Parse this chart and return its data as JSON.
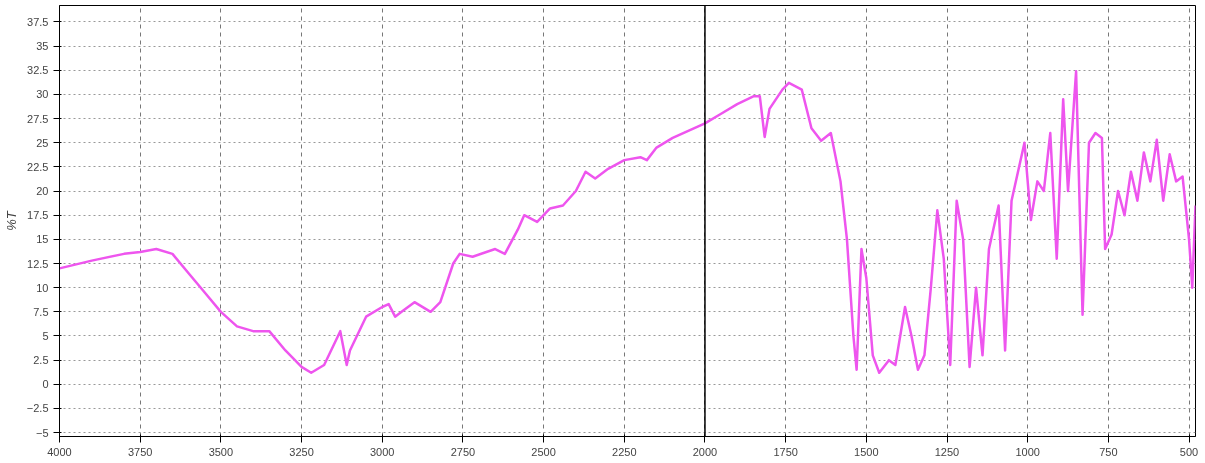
{
  "chart_data": {
    "type": "line",
    "ylabel": "%T",
    "x": [
      4000,
      3900,
      3800,
      3750,
      3700,
      3650,
      3600,
      3550,
      3500,
      3450,
      3400,
      3350,
      3300,
      3250,
      3220,
      3180,
      3130,
      3110,
      3100,
      3050,
      3000,
      2980,
      2960,
      2940,
      2900,
      2850,
      2820,
      2780,
      2760,
      2720,
      2650,
      2620,
      2580,
      2560,
      2520,
      2480,
      2440,
      2400,
      2370,
      2340,
      2300,
      2250,
      2200,
      2180,
      2150,
      2100,
      2000,
      1950,
      1900,
      1850,
      1830,
      1815,
      1800,
      1760,
      1740,
      1700,
      1670,
      1640,
      1610,
      1580,
      1560,
      1540,
      1530,
      1515,
      1500,
      1480,
      1460,
      1430,
      1410,
      1380,
      1360,
      1340,
      1320,
      1300,
      1280,
      1260,
      1240,
      1220,
      1200,
      1180,
      1160,
      1140,
      1120,
      1090,
      1070,
      1050,
      1010,
      990,
      970,
      950,
      930,
      910,
      890,
      875,
      850,
      830,
      810,
      790,
      770,
      760,
      740,
      720,
      700,
      680,
      660,
      640,
      620,
      600,
      580,
      560,
      540,
      520,
      500,
      490,
      480
    ],
    "series": [
      {
        "color": "#ee55ee",
        "values": [
          12,
          12.8,
          13.5,
          13.7,
          14,
          13.5,
          11.5,
          9.5,
          7.5,
          6,
          5.5,
          5.5,
          3.5,
          1.8,
          1.2,
          2,
          5.5,
          2,
          3.5,
          7,
          8,
          8.3,
          7,
          7.5,
          8.5,
          7.5,
          8.5,
          12.5,
          13.5,
          13.2,
          14,
          13.5,
          16,
          17.5,
          16.8,
          18.2,
          18.5,
          20,
          22,
          21.3,
          22.3,
          23.2,
          23.5,
          23.2,
          24.5,
          25.5,
          27,
          28,
          29,
          29.8,
          29.8,
          25.6,
          28.5,
          30.5,
          31.2,
          30.5,
          26.5,
          25.2,
          26,
          21,
          15,
          5,
          1.5,
          14,
          11,
          3,
          1.2,
          2.5,
          2,
          8,
          5,
          1.5,
          3,
          10,
          18,
          13,
          2,
          19,
          15,
          1.8,
          10,
          3,
          14,
          18.5,
          3.5,
          19,
          25,
          17,
          21,
          20,
          26,
          13,
          29.5,
          20,
          32.4,
          7.2,
          25,
          26,
          25.5,
          14,
          15.5,
          20,
          17.5,
          22,
          19,
          24,
          21,
          25.3,
          19,
          23.8,
          21,
          21.5,
          15,
          10,
          18.5
        ]
      }
    ],
    "xlim": [
      4000,
      480
    ],
    "ylim": [
      -5.4,
      39.2
    ],
    "xticks": [
      4000,
      3750,
      3500,
      3250,
      3000,
      2750,
      2500,
      2250,
      2000,
      1750,
      1500,
      1250,
      1000,
      750,
      500
    ],
    "yticks": [
      -5,
      -2.5,
      0,
      2.5,
      5,
      7.5,
      10,
      12.5,
      15,
      17.5,
      20,
      22.5,
      25,
      27.5,
      30,
      32.5,
      35,
      37.5
    ],
    "grid": true,
    "line_style": "solid",
    "marker": "none",
    "ref_lines": [
      {
        "axis": "x",
        "value": 2000,
        "color": "#000000",
        "line_style": "solid"
      }
    ]
  }
}
